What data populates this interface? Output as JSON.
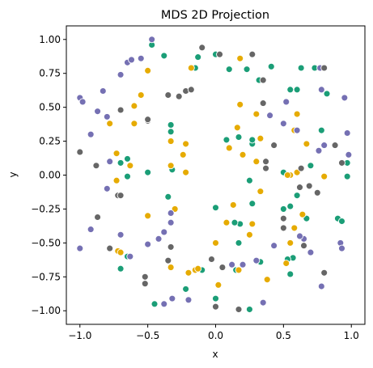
{
  "chart_data": {
    "type": "scatter",
    "title": "MDS 2D Projection",
    "xlabel": "x",
    "ylabel": "y",
    "xlim": [
      -1.1,
      1.1
    ],
    "ylim": [
      -1.1,
      1.1
    ],
    "xticks": [
      -1.0,
      -0.5,
      0.0,
      0.5,
      1.0
    ],
    "yticks": [
      -1.0,
      -0.75,
      -0.5,
      -0.25,
      0.0,
      0.25,
      0.5,
      0.75,
      1.0
    ],
    "xtick_labels": [
      "−1.0",
      "−0.5",
      "0.0",
      "0.5",
      "1.0"
    ],
    "ytick_labels": [
      "−1.00",
      "−0.75",
      "−0.50",
      "−0.25",
      "0.00",
      "0.25",
      "0.50",
      "0.75",
      "1.00"
    ],
    "grid": false,
    "legend": false,
    "marker_edge_color": "#ffffff",
    "series": [
      {
        "color": "#1b9e77",
        "points": [
          [
            -0.47,
            0.96
          ],
          [
            -0.38,
            0.88
          ],
          [
            -0.13,
            0.87
          ],
          [
            0.0,
            0.89
          ],
          [
            -0.15,
            0.79
          ],
          [
            0.1,
            0.78
          ],
          [
            0.23,
            0.78
          ],
          [
            0.32,
            0.7
          ],
          [
            0.41,
            0.8
          ],
          [
            0.55,
            0.63
          ],
          [
            0.6,
            0.63
          ],
          [
            0.63,
            0.79
          ],
          [
            0.73,
            0.79
          ],
          [
            0.82,
            0.6
          ],
          [
            0.78,
            0.33
          ],
          [
            0.97,
            0.09
          ],
          [
            0.97,
            -0.01
          ],
          [
            0.5,
            0.02
          ],
          [
            0.6,
            -0.15
          ],
          [
            0.5,
            -0.25
          ],
          [
            0.55,
            -0.23
          ],
          [
            0.67,
            -0.32
          ],
          [
            0.9,
            -0.32
          ],
          [
            0.93,
            -0.34
          ],
          [
            0.57,
            -0.61
          ],
          [
            0.53,
            -0.62
          ],
          [
            0.55,
            -0.73
          ],
          [
            0.17,
            -0.5
          ],
          [
            0.18,
            -0.36
          ],
          [
            0.14,
            -0.35
          ],
          [
            0.0,
            -0.24
          ],
          [
            0.27,
            -0.21
          ],
          [
            0.25,
            -0.04
          ],
          [
            0.27,
            0.23
          ],
          [
            0.17,
            0.28
          ],
          [
            0.27,
            0.26
          ],
          [
            -0.33,
            0.37
          ],
          [
            -0.33,
            0.32
          ],
          [
            -0.32,
            0.04
          ],
          [
            -0.5,
            0.02
          ],
          [
            -0.35,
            -0.16
          ],
          [
            -0.7,
            0.09
          ],
          [
            -0.65,
            -0.01
          ],
          [
            -0.65,
            0.12
          ],
          [
            -0.7,
            -0.69
          ],
          [
            -0.65,
            -0.6
          ],
          [
            -0.45,
            -0.95
          ],
          [
            -0.22,
            -0.84
          ],
          [
            -0.1,
            -0.7
          ],
          [
            0.0,
            -0.91
          ],
          [
            0.15,
            -0.7
          ],
          [
            0.33,
            -0.64
          ],
          [
            0.25,
            -0.99
          ],
          [
            0.08,
            0.26
          ],
          [
            0.7,
            0.07
          ]
        ]
      },
      {
        "color": "#e6ab02",
        "points": [
          [
            -0.18,
            0.79
          ],
          [
            0.18,
            0.86
          ],
          [
            -0.55,
            0.59
          ],
          [
            -0.78,
            0.38
          ],
          [
            -0.6,
            0.51
          ],
          [
            -0.5,
            0.77
          ],
          [
            -0.6,
            0.38
          ],
          [
            -0.22,
            0.23
          ],
          [
            -0.24,
            0.15
          ],
          [
            -0.22,
            0.02
          ],
          [
            -0.33,
            0.07
          ],
          [
            -0.73,
            0.16
          ],
          [
            -0.63,
            0.07
          ],
          [
            -0.73,
            -0.04
          ],
          [
            -0.72,
            -0.56
          ],
          [
            -0.7,
            -0.57
          ],
          [
            -0.5,
            -0.3
          ],
          [
            -0.33,
            -0.68
          ],
          [
            -0.15,
            -0.7
          ],
          [
            -0.2,
            -0.72
          ],
          [
            -0.13,
            -0.69
          ],
          [
            0.02,
            -0.81
          ],
          [
            0.17,
            -0.7
          ],
          [
            0.38,
            -0.77
          ],
          [
            0.52,
            -0.65
          ],
          [
            0.55,
            -0.5
          ],
          [
            0.58,
            -0.39
          ],
          [
            0.64,
            -0.29
          ],
          [
            0.55,
            0.0
          ],
          [
            0.53,
            0.0
          ],
          [
            0.6,
            0.02
          ],
          [
            0.8,
            -0.01
          ],
          [
            0.6,
            0.45
          ],
          [
            0.58,
            0.33
          ],
          [
            0.67,
            0.23
          ],
          [
            0.3,
            0.45
          ],
          [
            0.2,
            0.15
          ],
          [
            0.16,
            0.35
          ],
          [
            0.33,
            0.27
          ],
          [
            0.18,
            0.52
          ],
          [
            0.3,
            0.1
          ],
          [
            0.1,
            0.2
          ],
          [
            0.33,
            -0.12
          ],
          [
            0.13,
            -0.22
          ],
          [
            0.08,
            -0.35
          ],
          [
            0.27,
            -0.36
          ],
          [
            0.0,
            -0.5
          ],
          [
            0.25,
            -0.44
          ],
          [
            -0.33,
            0.25
          ],
          [
            -0.3,
            -0.25
          ]
        ]
      },
      {
        "color": "#7570b3",
        "points": [
          [
            -1.0,
            0.57
          ],
          [
            -0.98,
            0.54
          ],
          [
            -0.87,
            0.47
          ],
          [
            -0.83,
            0.62
          ],
          [
            -0.8,
            0.43
          ],
          [
            -0.92,
            0.3
          ],
          [
            -0.7,
            0.74
          ],
          [
            -0.65,
            0.83
          ],
          [
            -0.47,
            1.0
          ],
          [
            -0.55,
            0.86
          ],
          [
            -0.62,
            0.85
          ],
          [
            -0.78,
            0.1
          ],
          [
            -0.8,
            -0.1
          ],
          [
            -0.92,
            -0.4
          ],
          [
            -1.0,
            -0.54
          ],
          [
            -0.7,
            -0.44
          ],
          [
            -0.63,
            -0.6
          ],
          [
            -0.5,
            -0.51
          ],
          [
            -0.42,
            -0.47
          ],
          [
            -0.38,
            -0.42
          ],
          [
            -0.33,
            -0.28
          ],
          [
            -0.33,
            -0.35
          ],
          [
            -0.32,
            -0.91
          ],
          [
            -0.38,
            -0.95
          ],
          [
            -0.2,
            -0.92
          ],
          [
            0.12,
            -0.66
          ],
          [
            0.2,
            -0.66
          ],
          [
            0.35,
            -0.94
          ],
          [
            0.3,
            -0.63
          ],
          [
            0.43,
            -0.52
          ],
          [
            0.65,
            -0.47
          ],
          [
            0.62,
            -0.45
          ],
          [
            0.7,
            -0.57
          ],
          [
            0.78,
            -0.82
          ],
          [
            0.92,
            -0.5
          ],
          [
            0.93,
            -0.54
          ],
          [
            0.98,
            0.15
          ],
          [
            0.97,
            0.31
          ],
          [
            0.8,
            0.22
          ],
          [
            0.76,
            0.18
          ],
          [
            0.78,
            0.63
          ],
          [
            0.77,
            0.79
          ],
          [
            0.95,
            0.57
          ],
          [
            0.52,
            0.54
          ],
          [
            0.4,
            0.44
          ],
          [
            0.5,
            0.38
          ],
          [
            0.6,
            0.33
          ]
        ]
      },
      {
        "color": "#666666",
        "points": [
          [
            -1.0,
            0.17
          ],
          [
            -0.88,
            0.07
          ],
          [
            -0.87,
            -0.31
          ],
          [
            -0.78,
            -0.54
          ],
          [
            -0.72,
            -0.15
          ],
          [
            -0.7,
            -0.15
          ],
          [
            -0.5,
            0.4
          ],
          [
            -0.35,
            0.59
          ],
          [
            -0.22,
            0.62
          ],
          [
            -0.18,
            0.63
          ],
          [
            -0.27,
            0.58
          ],
          [
            -0.1,
            0.94
          ],
          [
            0.03,
            0.89
          ],
          [
            0.27,
            0.89
          ],
          [
            0.35,
            0.53
          ],
          [
            0.35,
            0.7
          ],
          [
            0.43,
            0.22
          ],
          [
            0.37,
            0.1
          ],
          [
            0.37,
            0.05
          ],
          [
            0.63,
            0.05
          ],
          [
            0.69,
            -0.08
          ],
          [
            0.75,
            -0.13
          ],
          [
            0.5,
            -0.32
          ],
          [
            0.5,
            -0.39
          ],
          [
            0.65,
            -0.52
          ],
          [
            0.8,
            -0.72
          ],
          [
            0.88,
            0.22
          ],
          [
            0.93,
            0.09
          ],
          [
            0.8,
            0.79
          ],
          [
            0.05,
            -0.68
          ],
          [
            -0.03,
            -0.62
          ],
          [
            0.0,
            -0.97
          ],
          [
            0.17,
            -0.99
          ],
          [
            -0.33,
            -0.53
          ],
          [
            -0.35,
            -0.63
          ],
          [
            -0.52,
            -0.8
          ],
          [
            -0.5,
            0.41
          ],
          [
            -0.7,
            0.48
          ],
          [
            -0.52,
            -0.75
          ],
          [
            0.62,
            -0.09
          ]
        ]
      }
    ]
  }
}
